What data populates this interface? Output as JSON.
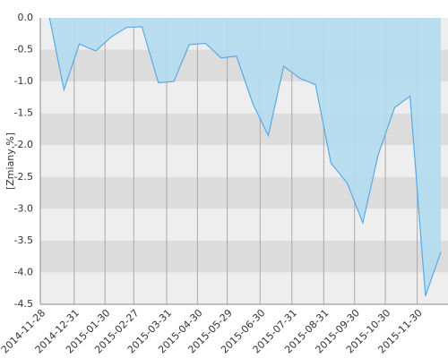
{
  "chart_data": {
    "type": "area",
    "y_label": "[Zmiany,%]",
    "x": [
      9,
      23,
      38,
      54,
      69,
      84,
      99,
      115,
      130,
      145,
      161,
      176,
      191,
      207,
      222,
      237,
      253,
      268,
      283,
      299,
      314,
      329,
      345,
      360,
      375,
      390
    ],
    "values": [
      0.0,
      -1.13,
      -0.41,
      -0.52,
      -0.3,
      -0.15,
      -0.14,
      -1.02,
      -1.0,
      -0.42,
      -0.4,
      -0.63,
      -0.6,
      -1.35,
      -1.85,
      -0.76,
      -0.95,
      -1.05,
      -2.28,
      -2.6,
      -3.22,
      -2.15,
      -1.41,
      -1.23,
      -4.37,
      -3.68
    ],
    "color": "#5aa9e6",
    "fill": "#b3dcee",
    "xlim": [
      0,
      397
    ],
    "xticks": [
      {
        "value": 0,
        "label": "2014-11-28"
      },
      {
        "value": 33,
        "label": "2014-12-31"
      },
      {
        "value": 63,
        "label": "2015-01-30"
      },
      {
        "value": 91,
        "label": "2015-02-27"
      },
      {
        "value": 123,
        "label": "2015-03-31"
      },
      {
        "value": 153,
        "label": "2015-04-30"
      },
      {
        "value": 182,
        "label": "2015-05-29"
      },
      {
        "value": 214,
        "label": "2015-06-30"
      },
      {
        "value": 245,
        "label": "2015-07-31"
      },
      {
        "value": 276,
        "label": "2015-08-31"
      },
      {
        "value": 306,
        "label": "2015-09-30"
      },
      {
        "value": 336,
        "label": "2015-10-30"
      },
      {
        "value": 367,
        "label": "2015-11-30"
      }
    ],
    "ylim": [
      -4.5,
      0
    ],
    "yticks": [
      {
        "value": 0,
        "label": "0.0"
      },
      {
        "value": -0.5,
        "label": "-0.5"
      },
      {
        "value": -1,
        "label": "-1.0"
      },
      {
        "value": -1.5,
        "label": "-1.5"
      },
      {
        "value": -2,
        "label": "-2.0"
      },
      {
        "value": -2.5,
        "label": "-2.5"
      },
      {
        "value": -3,
        "label": "-3.0"
      },
      {
        "value": -3.5,
        "label": "-3.5"
      },
      {
        "value": -4,
        "label": "-4.0"
      },
      {
        "value": -4.5,
        "label": "-4.5"
      }
    ],
    "grid": true
  }
}
